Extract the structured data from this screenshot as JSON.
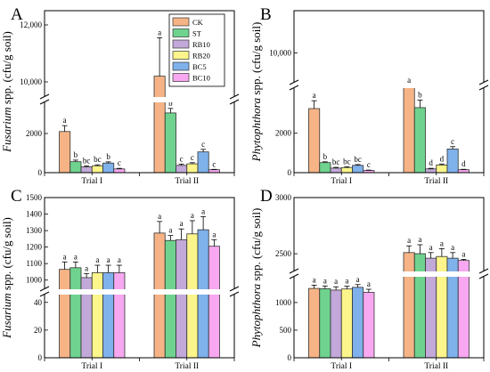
{
  "legend": [
    {
      "name": "CK",
      "color": "#f6b486"
    },
    {
      "name": "ST",
      "color": "#6fd38f"
    },
    {
      "name": "RB10",
      "color": "#c2a9d9"
    },
    {
      "name": "RB20",
      "color": "#fbf58b"
    },
    {
      "name": "BC5",
      "color": "#7fb1ea"
    },
    {
      "name": "BC10",
      "color": "#f7a8f0"
    }
  ],
  "chart_data": [
    {
      "panel": "A",
      "type": "bar",
      "ylabel_italic": "Fusarium",
      "ylabel_rest": " spp. (cfu/g soil)",
      "categories": [
        "Trial I",
        "Trial II"
      ],
      "series": [
        {
          "name": "CK",
          "values": [
            2100,
            10200
          ],
          "errors": [
            300,
            1350
          ],
          "letters": [
            "a",
            "a"
          ]
        },
        {
          "name": "ST",
          "values": [
            560,
            3050
          ],
          "errors": [
            80,
            230
          ],
          "letters": [
            "b",
            "b"
          ]
        },
        {
          "name": "RB10",
          "values": [
            290,
            370
          ],
          "errors": [
            50,
            70
          ],
          "letters": [
            "bc",
            "c"
          ]
        },
        {
          "name": "RB20",
          "values": [
            350,
            450
          ],
          "errors": [
            50,
            60
          ],
          "letters": [
            "bc",
            "c"
          ]
        },
        {
          "name": "BC5",
          "values": [
            490,
            1060
          ],
          "errors": [
            60,
            130
          ],
          "letters": [
            "b",
            "c"
          ]
        },
        {
          "name": "BC10",
          "values": [
            190,
            150
          ],
          "errors": [
            30,
            20
          ],
          "letters": [
            "c",
            "c"
          ]
        }
      ],
      "axis_breaks": [
        {
          "lower_max": 3500,
          "upper_min": 9500,
          "upper_max": 12500
        }
      ],
      "yticks": [
        0,
        2000,
        10000,
        12000
      ],
      "ytick_labels": [
        "0",
        "2000",
        "10,000",
        "12,000"
      ]
    },
    {
      "panel": "B",
      "type": "bar",
      "ylabel_italic": "Phytophthora",
      "ylabel_rest": " spp. (cfu/g soil)",
      "categories": [
        "Trial I",
        "Trial II"
      ],
      "series": [
        {
          "name": "CK",
          "values": [
            3250,
            4350
          ],
          "errors": [
            400,
            700
          ],
          "letters": [
            "a",
            "a"
          ]
        },
        {
          "name": "ST",
          "values": [
            510,
            3300
          ],
          "errors": [
            40,
            380
          ],
          "letters": [
            "b",
            "b"
          ]
        },
        {
          "name": "RB10",
          "values": [
            230,
            190
          ],
          "errors": [
            40,
            30
          ],
          "letters": [
            "bc",
            "d"
          ]
        },
        {
          "name": "RB20",
          "values": [
            260,
            390
          ],
          "errors": [
            40,
            50
          ],
          "letters": [
            "bc",
            "d"
          ]
        },
        {
          "name": "BC5",
          "values": [
            370,
            1200
          ],
          "errors": [
            40,
            120
          ],
          "letters": [
            "bc",
            "c"
          ]
        },
        {
          "name": "BC10",
          "values": [
            110,
            150
          ],
          "errors": [
            20,
            20
          ],
          "letters": [
            "c",
            "d"
          ]
        }
      ],
      "axis_breaks": [
        {
          "lower_max": 4200,
          "upper_min": 9000,
          "upper_max": 11500
        }
      ],
      "yticks": [
        0,
        2000,
        10000
      ],
      "ytick_labels": [
        "0",
        "2000",
        "10,000"
      ]
    },
    {
      "panel": "C",
      "type": "bar",
      "ylabel_italic": "Fusarium",
      "ylabel_rest": " spp. (cfu/g soil)",
      "categories": [
        "Trial I",
        "Trial II"
      ],
      "series": [
        {
          "name": "CK",
          "values": [
            1065,
            1285
          ],
          "errors": [
            45,
            70
          ],
          "letters": [
            "a",
            "a"
          ]
        },
        {
          "name": "ST",
          "values": [
            1075,
            1240
          ],
          "errors": [
            35,
            30
          ],
          "letters": [
            "a",
            "a"
          ]
        },
        {
          "name": "RB10",
          "values": [
            1015,
            1245
          ],
          "errors": [
            25,
            65
          ],
          "letters": [
            "a",
            "a"
          ]
        },
        {
          "name": "RB20",
          "values": [
            1045,
            1280
          ],
          "errors": [
            45,
            80
          ],
          "letters": [
            "a",
            "a"
          ]
        },
        {
          "name": "BC5",
          "values": [
            1045,
            1305
          ],
          "errors": [
            45,
            80
          ],
          "letters": [
            "a",
            "a"
          ]
        },
        {
          "name": "BC10",
          "values": [
            1045,
            1205
          ],
          "errors": [
            45,
            40
          ],
          "letters": [
            "a",
            "a"
          ]
        }
      ],
      "axis_breaks": [
        {
          "lower_max": 45,
          "upper_min": 950,
          "upper_max": 1500
        }
      ],
      "yticks": [
        0,
        20,
        40,
        1000,
        1100,
        1200,
        1300,
        1400,
        1500
      ],
      "ytick_labels": [
        "0",
        "20",
        "40",
        "1000",
        "1100",
        "1200",
        "1300",
        "1400",
        "1500"
      ]
    },
    {
      "panel": "D",
      "type": "bar",
      "ylabel_italic": "Phytophthora",
      "ylabel_rest": " spp. (cfu/g soil)",
      "categories": [
        "Trial I",
        "Trial II"
      ],
      "series": [
        {
          "name": "CK",
          "values": [
            1255,
            2510
          ],
          "errors": [
            60,
            60
          ],
          "letters": [
            "a",
            "a"
          ]
        },
        {
          "name": "ST",
          "values": [
            1250,
            2500
          ],
          "errors": [
            50,
            80
          ],
          "letters": [
            "a",
            "a"
          ]
        },
        {
          "name": "RB10",
          "values": [
            1225,
            2460
          ],
          "errors": [
            60,
            50
          ],
          "letters": [
            "a",
            "a"
          ]
        },
        {
          "name": "RB20",
          "values": [
            1245,
            2475
          ],
          "errors": [
            50,
            70
          ],
          "letters": [
            "a",
            "a"
          ]
        },
        {
          "name": "BC5",
          "values": [
            1275,
            2460
          ],
          "errors": [
            50,
            50
          ],
          "letters": [
            "a",
            "a"
          ]
        },
        {
          "name": "BC10",
          "values": [
            1185,
            2440
          ],
          "errors": [
            55,
            10
          ],
          "letters": [
            "a",
            "a"
          ]
        }
      ],
      "axis_breaks": [
        {
          "lower_max": 1450,
          "upper_min": 2350,
          "upper_max": 3000
        }
      ],
      "yticks": [
        0,
        500,
        1000,
        2500,
        3000
      ],
      "ytick_labels": [
        "0",
        "500",
        "1000",
        "2500",
        "3000"
      ]
    }
  ]
}
